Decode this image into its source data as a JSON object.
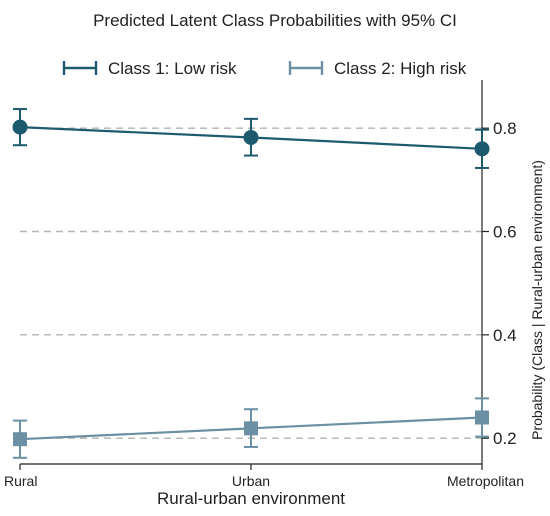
{
  "chart_data": {
    "type": "line",
    "title": "Predicted Latent Class Probabilities with 95% CI",
    "xlabel": "Rural-urban environment",
    "ylabel": "Probability (Class | Rural-urban environment)",
    "categories": [
      "Rural",
      "Urban",
      "Metropolitan"
    ],
    "ylim": [
      0.15,
      0.87
    ],
    "yticks": [
      0.8,
      0.6,
      0.4,
      0.2
    ],
    "ytick_labels": [
      "0.8",
      "0.6",
      "0.4",
      "0.2"
    ],
    "grid": "horizontal dashed",
    "legend_position": "top",
    "series": [
      {
        "name": "Class 1: Low risk",
        "marker": "circle",
        "color": "#1e5a6e",
        "values": [
          0.802,
          0.782,
          0.76
        ],
        "ci_low": [
          0.767,
          0.747,
          0.723
        ],
        "ci_high": [
          0.837,
          0.818,
          0.797
        ]
      },
      {
        "name": "Class 2: High risk",
        "marker": "square",
        "color": "#6b8fa3",
        "values": [
          0.198,
          0.219,
          0.24
        ],
        "ci_low": [
          0.162,
          0.183,
          0.203
        ],
        "ci_high": [
          0.234,
          0.256,
          0.277
        ]
      }
    ]
  }
}
